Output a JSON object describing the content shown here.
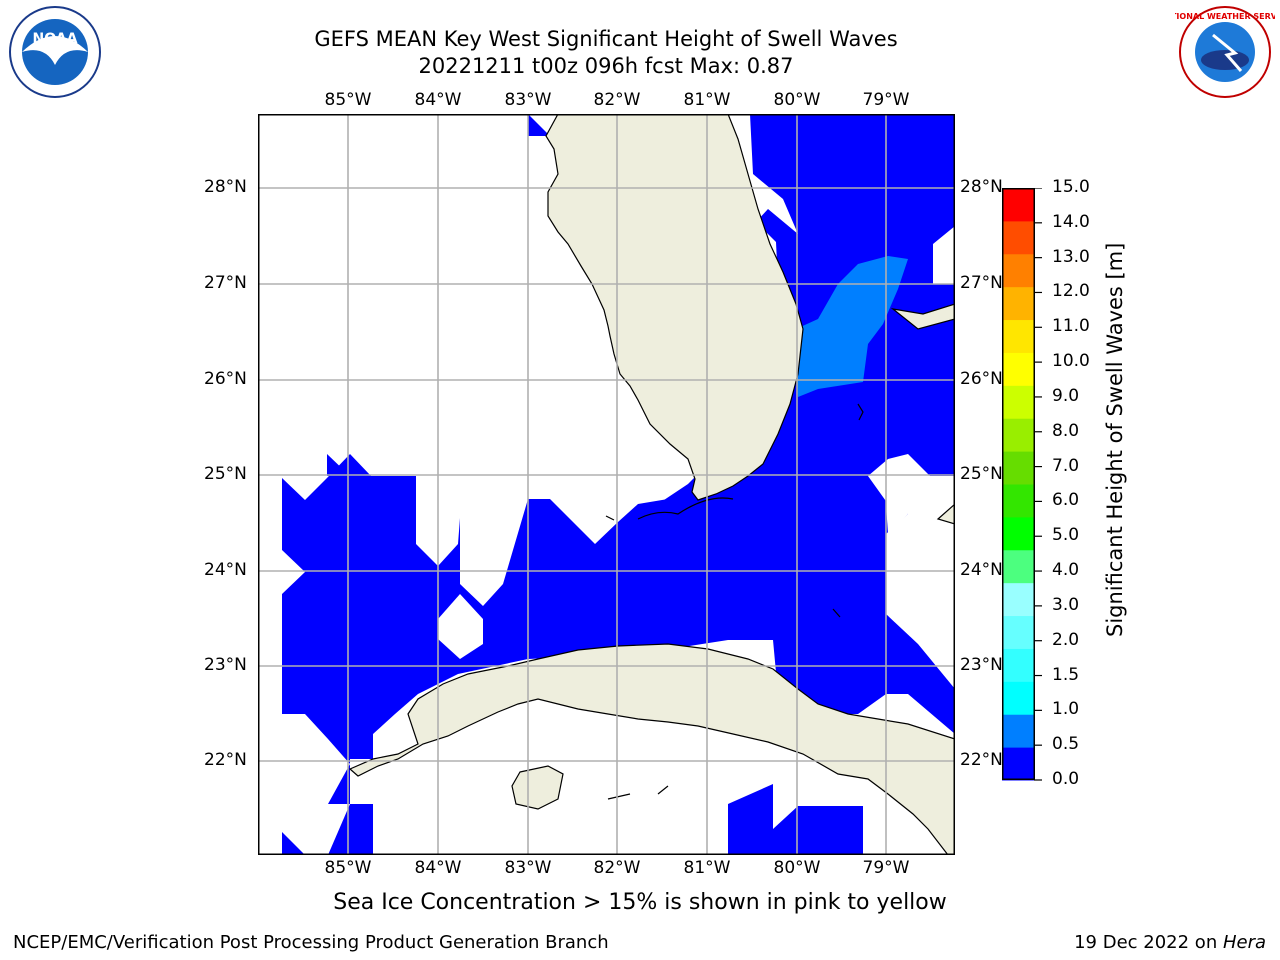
{
  "title_line1": "GEFS MEAN Key West Significant Height of Swell Waves",
  "title_line2": "20221211 t00z 096h fcst   Max: 0.87",
  "subnote": "Sea Ice Concentration > 15% is shown in pink to yellow",
  "footer_left": "NCEP/EMC/Verification Post Processing Product Generation Branch",
  "footer_date": "19 Dec 2022 on ",
  "footer_machine": "Hera",
  "logos": {
    "left": "NOAA",
    "right": "NATIONAL WEATHER SERVICE"
  },
  "map": {
    "lon_labels": [
      "85°W",
      "84°W",
      "83°W",
      "82°W",
      "81°W",
      "80°W",
      "79°W"
    ],
    "lat_labels": [
      "28°N",
      "27°N",
      "26°N",
      "25°N",
      "24°N",
      "23°N",
      "22°N"
    ],
    "colors": {
      "land": "#eeeedd",
      "swell_0": "#0000ff",
      "swell_05": "#007fff",
      "grid": "#b0b0b0"
    }
  },
  "colorbar": {
    "title": "Significant Height of Swell Waves [m]",
    "ticks": [
      "0.0",
      "0.5",
      "1.0",
      "1.5",
      "2.0",
      "3.0",
      "4.0",
      "5.0",
      "6.0",
      "7.0",
      "8.0",
      "9.0",
      "10.0",
      "11.0",
      "12.0",
      "13.0",
      "14.0",
      "15.0"
    ],
    "colors": [
      "#0000ff",
      "#007fff",
      "#00ffff",
      "#33ffff",
      "#66ffff",
      "#99ffff",
      "#4cff7f",
      "#00ff00",
      "#33e600",
      "#66dd00",
      "#99ee00",
      "#ccff00",
      "#ffff00",
      "#ffe600",
      "#ffb300",
      "#ff8000",
      "#ff4d00",
      "#ff0000"
    ]
  }
}
